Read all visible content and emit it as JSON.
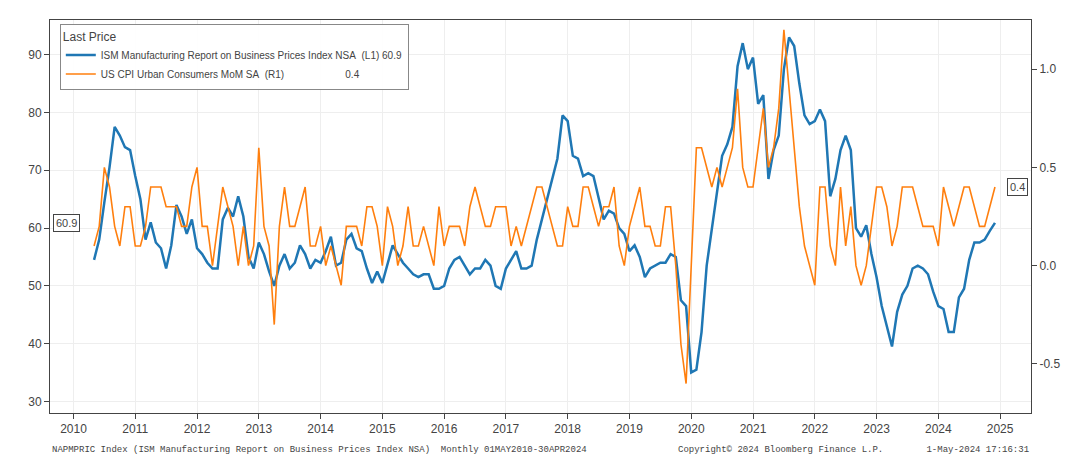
{
  "chart_data": {
    "type": "line",
    "legend_title": "Last Price",
    "legend": "upper left",
    "grid": true,
    "x": [
      2010.3333,
      2010.4167,
      2010.5,
      2010.5833,
      2010.6667,
      2010.75,
      2010.8333,
      2010.9167,
      2011.0,
      2011.0833,
      2011.1667,
      2011.25,
      2011.3333,
      2011.4167,
      2011.5,
      2011.5833,
      2011.6667,
      2011.75,
      2011.8333,
      2011.9167,
      2012.0,
      2012.0833,
      2012.1667,
      2012.25,
      2012.3333,
      2012.4167,
      2012.5,
      2012.5833,
      2012.6667,
      2012.75,
      2012.8333,
      2012.9167,
      2013.0,
      2013.0833,
      2013.1667,
      2013.25,
      2013.3333,
      2013.4167,
      2013.5,
      2013.5833,
      2013.6667,
      2013.75,
      2013.8333,
      2013.9167,
      2014.0,
      2014.0833,
      2014.1667,
      2014.25,
      2014.3333,
      2014.4167,
      2014.5,
      2014.5833,
      2014.6667,
      2014.75,
      2014.8333,
      2014.9167,
      2015.0,
      2015.0833,
      2015.1667,
      2015.25,
      2015.3333,
      2015.4167,
      2015.5,
      2015.5833,
      2015.6667,
      2015.75,
      2015.8333,
      2015.9167,
      2016.0,
      2016.0833,
      2016.1667,
      2016.25,
      2016.3333,
      2016.4167,
      2016.5,
      2016.5833,
      2016.6667,
      2016.75,
      2016.8333,
      2016.9167,
      2017.0,
      2017.0833,
      2017.1667,
      2017.25,
      2017.3333,
      2017.4167,
      2017.5,
      2017.5833,
      2017.6667,
      2017.75,
      2017.8333,
      2017.9167,
      2018.0,
      2018.0833,
      2018.1667,
      2018.25,
      2018.3333,
      2018.4167,
      2018.5,
      2018.5833,
      2018.6667,
      2018.75,
      2018.8333,
      2018.9167,
      2019.0,
      2019.0833,
      2019.1667,
      2019.25,
      2019.3333,
      2019.4167,
      2019.5,
      2019.5833,
      2019.6667,
      2019.75,
      2019.8333,
      2019.9167,
      2020.0,
      2020.0833,
      2020.1667,
      2020.25,
      2020.3333,
      2020.4167,
      2020.5,
      2020.5833,
      2020.6667,
      2020.75,
      2020.8333,
      2020.9167,
      2021.0,
      2021.0833,
      2021.1667,
      2021.25,
      2021.3333,
      2021.4167,
      2021.5,
      2021.5833,
      2021.6667,
      2021.75,
      2021.8333,
      2021.9167,
      2022.0,
      2022.0833,
      2022.1667,
      2022.25,
      2022.3333,
      2022.4167,
      2022.5,
      2022.5833,
      2022.6667,
      2022.75,
      2022.8333,
      2022.9167,
      2023.0,
      2023.0833,
      2023.1667,
      2023.25,
      2023.3333,
      2023.4167,
      2023.5,
      2023.5833,
      2023.6667,
      2023.75,
      2023.8333,
      2023.9167,
      2024.0,
      2024.0833,
      2024.1667,
      2024.25,
      2024.3333,
      2024.4167,
      2024.5,
      2024.5833,
      2024.6667,
      2024.75,
      2024.8333,
      2024.9167
    ],
    "xlim": [
      2009.62,
      2025.5
    ],
    "xticks": [
      2010,
      2011,
      2012,
      2013,
      2014,
      2015,
      2016,
      2017,
      2018,
      2019,
      2020,
      2021,
      2022,
      2023,
      2024,
      2025
    ],
    "ylim": [
      28,
      96
    ],
    "yticks": [
      30,
      40,
      50,
      60,
      70,
      80,
      90
    ],
    "y2lim": [
      -0.75,
      1.25
    ],
    "y2ticks": [
      -0.5,
      {
        "value": 0.0,
        "label": "0.0"
      },
      0.5,
      {
        "value": 1.0,
        "label": "1.0"
      }
    ],
    "series": [
      {
        "name": "ISM Manufacturing Report on Business Prices Index NSA  (L1) 60.9",
        "axis": "y",
        "values": [
          54.5,
          58.0,
          64.5,
          70.5,
          77.5,
          76.0,
          74.0,
          73.5,
          69.0,
          65.0,
          58.0,
          61.0,
          57.5,
          56.5,
          53.0,
          57.0,
          64.0,
          62.0,
          59.0,
          61.5,
          56.5,
          55.5,
          54.0,
          53.0,
          53.0,
          61.5,
          63.5,
          62.0,
          65.5,
          62.0,
          55.0,
          53.0,
          57.5,
          55.5,
          52.5,
          50.0,
          53.5,
          55.5,
          53.0,
          54.0,
          57.0,
          55.5,
          53.0,
          54.5,
          54.0,
          56.0,
          58.5,
          53.5,
          54.0,
          58.0,
          59.0,
          56.5,
          56.0,
          53.0,
          50.5,
          52.5,
          50.5,
          54.0,
          57.0,
          55.5,
          54.0,
          53.0,
          52.0,
          51.5,
          52.0,
          52.0,
          49.5,
          49.5,
          50.0,
          53.0,
          54.5,
          55.0,
          53.5,
          52.0,
          53.0,
          53.0,
          54.5,
          53.5,
          50.0,
          49.5,
          53.0,
          54.5,
          56.0,
          53.0,
          53.0,
          53.5,
          58.0,
          61.5,
          65.0,
          69.0,
          72.0,
          79.5,
          78.5,
          72.5,
          72.0,
          69.0,
          69.5,
          69.0,
          65.0,
          61.5,
          63.0,
          62.5,
          60.0,
          59.0,
          56.0,
          57.0,
          55.0,
          51.5,
          53.0,
          53.5,
          54.0,
          54.0,
          55.5,
          55.0,
          47.5,
          46.5,
          35.0,
          35.5,
          42.0,
          53.5,
          60.0,
          66.5,
          72.5,
          74.5,
          77.5,
          88.0,
          92.0,
          87.5,
          89.5,
          81.5,
          83.0,
          68.5,
          73.5,
          76.0,
          87.5,
          93.0,
          91.5,
          85.0,
          79.5,
          78.0,
          78.5,
          80.5,
          78.5,
          65.5,
          68.5,
          73.5,
          76.0,
          73.5,
          60.0,
          58.5,
          60.5,
          55.5,
          51.5,
          46.5,
          43.0,
          39.5,
          45.5,
          48.5,
          50.0,
          53.0,
          53.5,
          53.0,
          52.0,
          49.0,
          46.5,
          46.0,
          42.0,
          42.0,
          48.0,
          49.5,
          54.5,
          57.5,
          57.5,
          58.0,
          59.5,
          60.9
        ]
      },
      {
        "name": "US CPI Urban Consumers MoM SA  (R1)                      0.4",
        "axis": "y2",
        "values": [
          0.1,
          0.2,
          0.5,
          0.4,
          0.2,
          0.1,
          0.3,
          0.3,
          0.1,
          0.1,
          0.2,
          0.4,
          0.4,
          0.4,
          0.3,
          0.3,
          0.3,
          0.2,
          0.2,
          0.4,
          0.5,
          0.2,
          0.2,
          0.0,
          0.2,
          0.4,
          0.3,
          0.2,
          0.0,
          0.2,
          0.0,
          0.1,
          0.6,
          0.2,
          0.1,
          -0.3,
          0.2,
          0.4,
          0.2,
          0.2,
          0.3,
          0.4,
          0.1,
          0.1,
          0.2,
          0.0,
          0.1,
          0.0,
          -0.1,
          0.2,
          0.2,
          0.2,
          0.1,
          0.3,
          0.3,
          0.2,
          0.0,
          0.3,
          0.2,
          0.0,
          0.1,
          0.3,
          0.1,
          0.1,
          0.2,
          0.1,
          0.0,
          0.3,
          0.1,
          0.2,
          0.2,
          0.2,
          0.1,
          0.3,
          0.4,
          0.3,
          0.2,
          0.2,
          0.3,
          0.3,
          0.3,
          0.1,
          0.2,
          0.1,
          0.2,
          0.3,
          0.4,
          0.4,
          0.3,
          0.2,
          0.1,
          0.1,
          0.3,
          0.2,
          0.2,
          0.4,
          0.4,
          0.3,
          0.2,
          0.3,
          0.3,
          0.4,
          0.1,
          0.0,
          0.2,
          0.3,
          0.4,
          0.2,
          0.2,
          0.1,
          0.1,
          0.3,
          0.3,
          0.0,
          -0.4,
          -0.6,
          0.0,
          0.6,
          0.6,
          0.5,
          0.4,
          0.5,
          0.4,
          0.5,
          0.6,
          0.9,
          0.5,
          0.4,
          0.4,
          0.6,
          0.8,
          0.5,
          0.6,
          0.8,
          1.2,
          0.9,
          0.6,
          0.3,
          0.1,
          0.0,
          -0.1,
          0.4,
          0.4,
          0.1,
          0.0,
          0.4,
          0.1,
          0.3,
          0.0,
          -0.1,
          0.0,
          0.2,
          0.4,
          0.4,
          0.3,
          0.1,
          0.2,
          0.4,
          0.4,
          0.4,
          0.3,
          0.2,
          0.2,
          0.2,
          0.1,
          0.4,
          0.3,
          0.2,
          0.3,
          0.4,
          0.4,
          0.3,
          0.2,
          0.2,
          0.3,
          0.4
        ]
      }
    ],
    "annotations": [
      {
        "text": "60.9",
        "y": 60.9,
        "axis": "y"
      },
      {
        "text": "0.4",
        "y": 0.4,
        "axis": "y2"
      }
    ],
    "footer_left": "NAPMPRIC Index (ISM Manufacturing Report on Business Prices Index NSA)  Monthly 01MAY2010-30APR2024",
    "footer_right": "Copyright© 2024 Bloomberg Finance L.P.        1-May-2024 17:16:31"
  }
}
